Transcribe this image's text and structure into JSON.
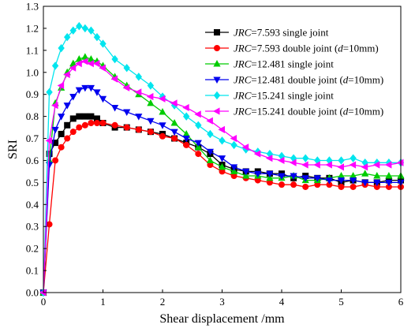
{
  "chart_data": {
    "type": "line",
    "title": "",
    "xlabel": "Shear displacement /mm",
    "ylabel": "SRI",
    "xlim": [
      0,
      6
    ],
    "ylim": [
      0.0,
      1.3
    ],
    "xticks": [
      "0",
      "1",
      "2",
      "3",
      "4",
      "5",
      "6"
    ],
    "yticks": [
      "0.0",
      "0.1",
      "0.2",
      "0.3",
      "0.4",
      "0.5",
      "0.6",
      "0.7",
      "0.8",
      "0.9",
      "1.0",
      "1.1",
      "1.2",
      "1.3"
    ],
    "grid": false,
    "legend_position": "top-right",
    "series": [
      {
        "legend_italic": "JRC",
        "legend_rest": "=7.593 single joint",
        "legend_d": "",
        "legend_tail": "",
        "color": "#000000",
        "marker": "square",
        "x": [
          0,
          0.1,
          0.2,
          0.3,
          0.4,
          0.5,
          0.6,
          0.7,
          0.8,
          0.9,
          1.0,
          1.2,
          1.4,
          1.6,
          1.8,
          2.0,
          2.2,
          2.4,
          2.6,
          2.8,
          3.0,
          3.2,
          3.4,
          3.6,
          3.8,
          4.0,
          4.2,
          4.4,
          4.6,
          4.8,
          5.0,
          5.2,
          5.4,
          5.6,
          5.8,
          6.0
        ],
        "y": [
          0.0,
          0.63,
          0.68,
          0.72,
          0.76,
          0.79,
          0.8,
          0.8,
          0.8,
          0.79,
          0.77,
          0.75,
          0.75,
          0.74,
          0.73,
          0.72,
          0.7,
          0.68,
          0.66,
          0.63,
          0.58,
          0.56,
          0.55,
          0.55,
          0.54,
          0.54,
          0.52,
          0.53,
          0.52,
          0.52,
          0.5,
          0.51,
          0.5,
          0.5,
          0.51,
          0.51
        ]
      },
      {
        "legend_italic": "JRC",
        "legend_rest": "=7.593 double joint (",
        "legend_d": "d",
        "legend_tail": "=10mm)",
        "color": "#ff0000",
        "marker": "circle",
        "x": [
          0,
          0.1,
          0.2,
          0.3,
          0.4,
          0.5,
          0.6,
          0.7,
          0.8,
          0.9,
          1.0,
          1.2,
          1.4,
          1.6,
          1.8,
          2.0,
          2.2,
          2.4,
          2.6,
          2.8,
          3.0,
          3.2,
          3.4,
          3.6,
          3.8,
          4.0,
          4.2,
          4.4,
          4.6,
          4.8,
          5.0,
          5.2,
          5.4,
          5.6,
          5.8,
          6.0
        ],
        "y": [
          0.0,
          0.31,
          0.6,
          0.66,
          0.7,
          0.73,
          0.75,
          0.76,
          0.77,
          0.77,
          0.77,
          0.76,
          0.75,
          0.74,
          0.73,
          0.71,
          0.7,
          0.67,
          0.63,
          0.58,
          0.55,
          0.53,
          0.52,
          0.51,
          0.5,
          0.49,
          0.49,
          0.48,
          0.49,
          0.49,
          0.48,
          0.48,
          0.49,
          0.48,
          0.48,
          0.48
        ]
      },
      {
        "legend_italic": "JRC",
        "legend_rest": "=12.481 single joint",
        "legend_d": "",
        "legend_tail": "",
        "color": "#00cc00",
        "marker": "triangle-up",
        "x": [
          0,
          0.1,
          0.2,
          0.3,
          0.4,
          0.5,
          0.6,
          0.7,
          0.8,
          0.9,
          1.0,
          1.2,
          1.4,
          1.6,
          1.8,
          2.0,
          2.2,
          2.4,
          2.6,
          2.8,
          3.0,
          3.2,
          3.4,
          3.6,
          3.8,
          4.0,
          4.2,
          4.4,
          4.6,
          4.8,
          5.0,
          5.2,
          5.4,
          5.6,
          5.8,
          6.0
        ],
        "y": [
          0.0,
          0.6,
          0.86,
          0.93,
          1.0,
          1.04,
          1.06,
          1.07,
          1.06,
          1.05,
          1.03,
          0.98,
          0.94,
          0.9,
          0.86,
          0.82,
          0.77,
          0.72,
          0.66,
          0.6,
          0.57,
          0.55,
          0.53,
          0.53,
          0.52,
          0.52,
          0.53,
          0.51,
          0.51,
          0.52,
          0.53,
          0.53,
          0.54,
          0.53,
          0.53,
          0.53
        ]
      },
      {
        "legend_italic": "JRC",
        "legend_rest": "=12.481 double joint (",
        "legend_d": "d",
        "legend_tail": "=10mm)",
        "color": "#0000ee",
        "marker": "triangle-down",
        "x": [
          0,
          0.1,
          0.2,
          0.3,
          0.4,
          0.5,
          0.6,
          0.7,
          0.8,
          0.9,
          1.0,
          1.2,
          1.4,
          1.6,
          1.8,
          2.0,
          2.2,
          2.4,
          2.6,
          2.8,
          3.0,
          3.2,
          3.4,
          3.6,
          3.8,
          4.0,
          4.2,
          4.4,
          4.6,
          4.8,
          5.0,
          5.2,
          5.4,
          5.6,
          5.8,
          6.0
        ],
        "y": [
          0.0,
          0.58,
          0.74,
          0.8,
          0.85,
          0.89,
          0.92,
          0.93,
          0.93,
          0.91,
          0.88,
          0.84,
          0.82,
          0.8,
          0.78,
          0.76,
          0.73,
          0.7,
          0.68,
          0.64,
          0.61,
          0.57,
          0.55,
          0.54,
          0.54,
          0.53,
          0.53,
          0.52,
          0.52,
          0.51,
          0.51,
          0.51,
          0.5,
          0.5,
          0.5,
          0.5
        ]
      },
      {
        "legend_italic": "JRC",
        "legend_rest": "=15.241 single joint",
        "legend_d": "",
        "legend_tail": "",
        "color": "#00e5ee",
        "marker": "diamond",
        "x": [
          0,
          0.1,
          0.2,
          0.3,
          0.4,
          0.5,
          0.6,
          0.7,
          0.8,
          0.9,
          1.0,
          1.2,
          1.4,
          1.6,
          1.8,
          2.0,
          2.2,
          2.4,
          2.6,
          2.8,
          3.0,
          3.2,
          3.4,
          3.6,
          3.8,
          4.0,
          4.2,
          4.4,
          4.6,
          4.8,
          5.0,
          5.2,
          5.4,
          5.6,
          5.8,
          6.0
        ],
        "y": [
          0.0,
          0.91,
          1.03,
          1.11,
          1.16,
          1.19,
          1.21,
          1.2,
          1.19,
          1.16,
          1.13,
          1.06,
          1.02,
          0.98,
          0.94,
          0.89,
          0.85,
          0.8,
          0.76,
          0.72,
          0.69,
          0.67,
          0.65,
          0.64,
          0.63,
          0.62,
          0.61,
          0.61,
          0.6,
          0.6,
          0.6,
          0.61,
          0.59,
          0.59,
          0.59,
          0.59
        ]
      },
      {
        "legend_italic": "JRC",
        "legend_rest": "=15.241 double joint (",
        "legend_d": "d",
        "legend_tail": "=10mm)",
        "color": "#ff00ff",
        "marker": "triangle-left",
        "x": [
          0,
          0.1,
          0.2,
          0.3,
          0.4,
          0.5,
          0.6,
          0.7,
          0.8,
          0.9,
          1.0,
          1.2,
          1.4,
          1.6,
          1.8,
          2.0,
          2.2,
          2.4,
          2.6,
          2.8,
          3.0,
          3.2,
          3.4,
          3.6,
          3.8,
          4.0,
          4.2,
          4.4,
          4.6,
          4.8,
          5.0,
          5.2,
          5.4,
          5.6,
          5.8,
          6.0
        ],
        "y": [
          0.0,
          0.69,
          0.85,
          0.94,
          0.99,
          1.02,
          1.04,
          1.05,
          1.04,
          1.04,
          1.02,
          0.97,
          0.93,
          0.91,
          0.89,
          0.88,
          0.86,
          0.84,
          0.81,
          0.78,
          0.74,
          0.7,
          0.66,
          0.63,
          0.61,
          0.6,
          0.59,
          0.58,
          0.58,
          0.58,
          0.57,
          0.58,
          0.57,
          0.58,
          0.58,
          0.59
        ]
      }
    ]
  }
}
